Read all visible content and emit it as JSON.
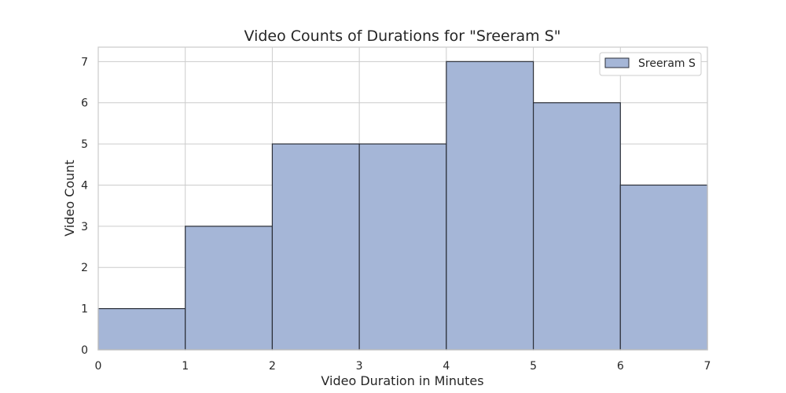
{
  "chart_data": {
    "type": "bar",
    "title": "Video Counts of Durations for \"Sreeram S\"",
    "xlabel": "Video Duration in Minutes",
    "ylabel": "Video Count",
    "xlim": [
      0,
      7
    ],
    "ylim": [
      0,
      7.35
    ],
    "xticks": [
      "0",
      "1",
      "2",
      "3",
      "4",
      "5",
      "6",
      "7"
    ],
    "yticks": [
      "0",
      "1",
      "2",
      "3",
      "4",
      "5",
      "6",
      "7"
    ],
    "bins": [
      [
        0,
        1
      ],
      [
        1,
        2
      ],
      [
        2,
        3
      ],
      [
        3,
        4
      ],
      [
        4,
        5
      ],
      [
        5,
        6
      ],
      [
        6,
        7
      ]
    ],
    "series": [
      {
        "name": "Sreeram S",
        "values": [
          1,
          3,
          5,
          5,
          7,
          6,
          4
        ]
      }
    ],
    "grid": true,
    "legend_position": "top-right",
    "colors": {
      "bar_fill": "#a5b6d7",
      "bar_edge": "#2b2f38",
      "grid": "#cccccc",
      "text": "#262626"
    }
  }
}
